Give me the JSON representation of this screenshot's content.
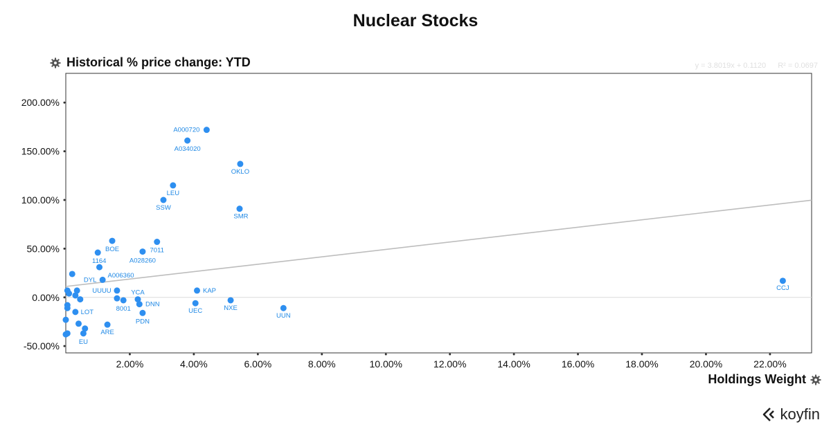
{
  "header": {
    "title": "Nuclear Stocks"
  },
  "axes": {
    "ylabel": "Historical % price change: YTD",
    "xlabel": "Holdings Weight"
  },
  "regression": {
    "equation": "y = 3.8019x + 0.1120",
    "r2": "R² = 0.0697"
  },
  "brand": {
    "name": "koyfin"
  },
  "colors": {
    "points": "#2e8ff0",
    "labels": "#1e88e5",
    "trend": "#bdbdbd"
  },
  "chart_data": {
    "type": "scatter",
    "title": "Nuclear Stocks",
    "xlabel": "Holdings Weight",
    "ylabel": "Historical % price change: YTD",
    "xlim": [
      0,
      23.3
    ],
    "ylim": [
      -57,
      230
    ],
    "xticks": [
      2,
      4,
      6,
      8,
      10,
      12,
      14,
      16,
      18,
      20,
      22
    ],
    "xtick_labels": [
      "2.00%",
      "4.00%",
      "6.00%",
      "8.00%",
      "10.00%",
      "12.00%",
      "14.00%",
      "16.00%",
      "18.00%",
      "20.00%",
      "22.00%"
    ],
    "yticks": [
      -50,
      0,
      50,
      100,
      150,
      200
    ],
    "ytick_labels": [
      "-50.00%",
      "0.00%",
      "50.00%",
      "100.00%",
      "150.00%",
      "200.00%"
    ],
    "trendline": {
      "slope": 3.8019,
      "intercept": 11.2
    },
    "grid": false,
    "legend": "none",
    "points": [
      {
        "label": "A000720",
        "x": 4.4,
        "y": 172
      },
      {
        "label": "A034020",
        "x": 3.8,
        "y": 161
      },
      {
        "label": "OKLO",
        "x": 5.45,
        "y": 137
      },
      {
        "label": "LEU",
        "x": 3.35,
        "y": 115
      },
      {
        "label": "SSW",
        "x": 3.05,
        "y": 100
      },
      {
        "label": "SMR",
        "x": 5.43,
        "y": 91
      },
      {
        "label": "BOE",
        "x": 1.45,
        "y": 58
      },
      {
        "label": "7011",
        "x": 2.85,
        "y": 57
      },
      {
        "label": "1164",
        "x": 1.0,
        "y": 46
      },
      {
        "label": "A028260",
        "x": 2.4,
        "y": 47
      },
      {
        "label": "A006360",
        "x": 1.05,
        "y": 31
      },
      {
        "label": "DYL",
        "x": 1.15,
        "y": 18
      },
      {
        "label": "UUUU",
        "x": 1.6,
        "y": 7
      },
      {
        "label": "YCA",
        "x": 2.25,
        "y": -2
      },
      {
        "label": "8001",
        "x": 1.8,
        "y": -3
      },
      {
        "label": "DNN",
        "x": 2.3,
        "y": -7
      },
      {
        "label": "KAP",
        "x": 4.1,
        "y": 7
      },
      {
        "label": "UEC",
        "x": 4.05,
        "y": -6
      },
      {
        "label": "NXE",
        "x": 5.15,
        "y": -3
      },
      {
        "label": "UUN",
        "x": 6.8,
        "y": -11
      },
      {
        "label": "PDN",
        "x": 2.4,
        "y": -16
      },
      {
        "label": "LOT",
        "x": 0.3,
        "y": -15
      },
      {
        "label": "ARE",
        "x": 1.3,
        "y": -28
      },
      {
        "label": "EU",
        "x": 0.55,
        "y": -37
      },
      {
        "label": "CCJ",
        "x": 22.4,
        "y": 17
      },
      {
        "label": "",
        "x": 0.2,
        "y": 24
      },
      {
        "label": "",
        "x": 0.35,
        "y": 7
      },
      {
        "label": "",
        "x": 0.05,
        "y": 7
      },
      {
        "label": "",
        "x": 0.1,
        "y": 4
      },
      {
        "label": "",
        "x": 0.3,
        "y": 2
      },
      {
        "label": "",
        "x": 0.45,
        "y": -2
      },
      {
        "label": "",
        "x": 1.6,
        "y": -1
      },
      {
        "label": "",
        "x": 0.05,
        "y": -8
      },
      {
        "label": "",
        "x": 0.05,
        "y": -11
      },
      {
        "label": "",
        "x": 0.0,
        "y": -23
      },
      {
        "label": "",
        "x": 0.4,
        "y": -27
      },
      {
        "label": "",
        "x": 0.6,
        "y": -32
      },
      {
        "label": "",
        "x": 0.05,
        "y": -37
      },
      {
        "label": "",
        "x": 0.0,
        "y": -38
      }
    ]
  }
}
